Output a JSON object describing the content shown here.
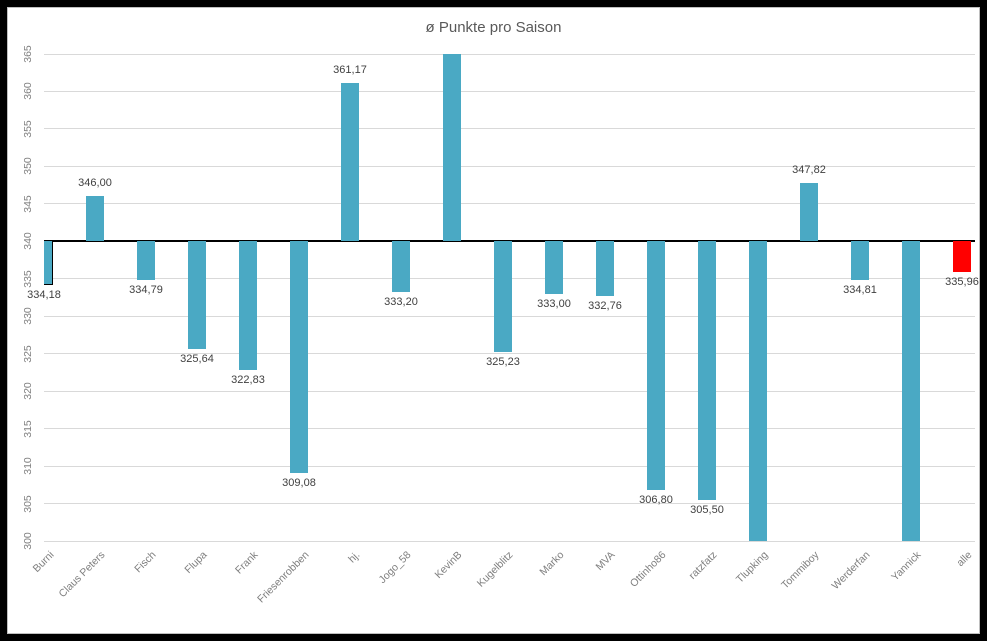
{
  "window": {
    "outer_border_color": "#000000",
    "inner_border_color": "#bfbfbf",
    "background": "#ffffff"
  },
  "chart_data": {
    "type": "bar",
    "title": "ø Punkte pro Saison",
    "xlabel": "",
    "ylabel": "",
    "ylim": [
      300,
      365
    ],
    "ytick_step": 5,
    "yticks": [
      "365",
      "360",
      "355",
      "350",
      "345",
      "340",
      "335",
      "330",
      "325",
      "320",
      "315",
      "310",
      "305",
      "300"
    ],
    "baseline": 340,
    "grid": true,
    "legend": "none",
    "categories": [
      "Burni",
      "Claus Peters",
      "Fisch",
      "Flupa",
      "Frank",
      "Friesenrobben",
      "hj.",
      "Jogo_58",
      "KevinB",
      "Kugelblitz",
      "Marko",
      "MVA",
      "Ottinho86",
      "ratzfatz",
      "Tlupking",
      "Tommiboy",
      "Werderfan",
      "Yannick",
      "alle"
    ],
    "values": [
      334.18,
      346.0,
      334.79,
      325.64,
      322.83,
      309.08,
      361.17,
      333.2,
      null,
      325.23,
      333.0,
      332.76,
      306.8,
      305.5,
      null,
      347.82,
      334.81,
      null,
      335.96
    ],
    "value_labels": [
      "334,18",
      "346,00",
      "334,79",
      "325,64",
      "322,83",
      "309,08",
      "361,17",
      "333,20",
      "",
      "325,23",
      "333,00",
      "332,76",
      "306,80",
      "305,50",
      "",
      "347,82",
      "334,81",
      "",
      "335,96"
    ],
    "clipped": [
      null,
      null,
      null,
      null,
      null,
      null,
      null,
      null,
      "above",
      null,
      null,
      null,
      null,
      null,
      "below",
      null,
      null,
      "below",
      null
    ],
    "highlight_index": 18,
    "colors": {
      "bar": "#4AA9C4",
      "highlight": "#FF0000",
      "gridline": "#d9d9d9",
      "baseline": "#000000",
      "ytick_label": "#808080",
      "xtick_label": "#7f7f7f",
      "value_label": "#404040",
      "title": "#595959"
    }
  }
}
